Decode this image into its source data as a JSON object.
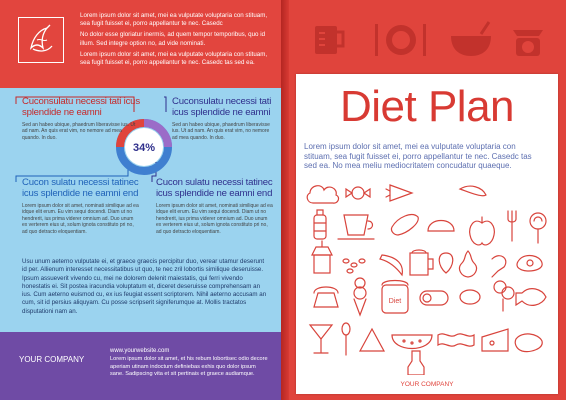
{
  "left_page": {
    "top_paragraphs": [
      "Lorem ipsum dolor sit amet, mei ea vulputate voluptaria con stituam, sea fugit fuisset ei, porro appellantur te nec. Casedc",
      "No dolor esse gloriatur inermis, ad quem tempor temporibus, quo id illum. Sed integre option no, ad vide nominati.",
      "Lorem ipsum dolor sit amet, mei ea vulputate voluptaria con stituam, sea fugit fuisset ei, porro appellantur te nec. Casedc tas sed ea."
    ],
    "donut_value": "34%",
    "quadrants": [
      {
        "title": "Cuconsulatu necessi tati icus splendide ne eamni",
        "body": "Sed an habeo ubique, phaedrum liberavisse ius. Ut ad nam. An quis erat vim, no nemore ad mea quando. In duo."
      },
      {
        "title": "Cuconsulatu necessi tati icus splendide ne eamni",
        "body": "Sed an habeo ubique, phaedrum liberavisse ius. Ut ad nam. An quis erat vim, no nemore ad mea quando. In duo."
      },
      {
        "title": "Cucon sulatu necessi tatinec icus splendide ne eamni end",
        "body": "Lorem ipsum dolor sit amet, nominati similique ad ea idque elit erum. Eu vim sequi docendi. Diam ut no hendrerit, ius prima viderer omnium ad. Duo unum ex verterem eius ut, solum ignota constituto pri no, ad quo detracto eloquentiam."
      },
      {
        "title": "Cucon sulatu necessi tatinec icus splendide ne eamni end",
        "body": "Lorem ipsum dolor sit amet, nominati similique ad ea idque elit erum. Eu vim sequi docendi. Diam ut no hendrerit, ius prima viderer omnium ad. Duo unum ex verterem eius ut, solum ignota constituto pri no, ad quo detracto eloquentiam."
      }
    ],
    "bottom_paragraph": "Usu unum aeterno vulputate ei, et graece graecis percipitur duo, verear utamur deserunt id per. Allienum interesset necessitatibus ut quo, te nec zril lobortis similique deseruisse. Ipsum assueverit vivendo cu, mei ne dolorem delenit maiestatis, qui ferri vivendo honestatis ei. Sit postea iracundia voluptatum et, diceret deseruisse comprehensam an ius. Cum aeterno euismod cu, ex ius feugiat essent scriptorem. Nihil aeterno accusam an cum, sit id persius aliquyam. Cu posse scripserit signiferumque at. Mollis tractatos disputationi nam an.",
    "company": "YOUR COMPANY",
    "website": "www.yourwebsite.com",
    "footer_paragraph": "Lorem ipsum dolor sit amet, et his rebum lobortisec odio decore aperiam utinam indoctum definiebas exhis quo dolor ipsum sane. Sadipscing vita et sit pertinais et graece audiamque."
  },
  "right_page": {
    "title": "Diet Plan",
    "paragraph": "Lorem ipsum dolor sit amet, mei ea vulputate voluptaria con stituam, sea fugit fuisset ei, porro appellantur te nec. Casedc tas sed ea. No mea meliu mediocritatem concudatur quaeque.",
    "jar_label": "Diet",
    "company": "YOUR COMPANY"
  },
  "icons": [
    "banana-icon",
    "measuring-cup-icon",
    "plate-cutlery-icon",
    "mixing-bowl-icon",
    "kitchen-scale-icon"
  ],
  "colors": {
    "red": "#e0443c",
    "blue": "#9bd3ef",
    "purple": "#6f4ba5",
    "navy": "#2f2f8c"
  }
}
